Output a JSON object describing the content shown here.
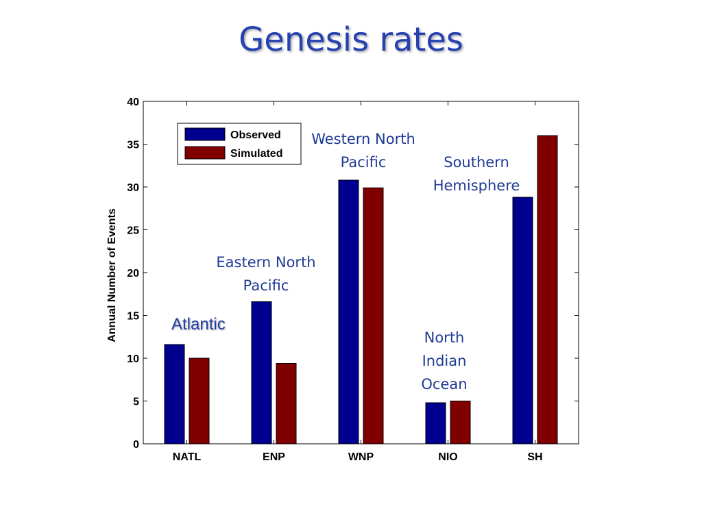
{
  "slide": {
    "title": "Genesis rates"
  },
  "colors": {
    "observed": "#00008f",
    "simulated": "#800000",
    "annotation": "#1f3a93"
  },
  "chart_data": {
    "type": "bar",
    "title": "",
    "xlabel": "",
    "ylabel": "Annual Number of Events",
    "categories": [
      "NATL",
      "ENP",
      "WNP",
      "NIO",
      "SH"
    ],
    "series": [
      {
        "name": "Observed",
        "values": [
          11.6,
          16.6,
          30.8,
          4.8,
          28.8
        ]
      },
      {
        "name": "Simulated",
        "values": [
          10.0,
          9.4,
          29.9,
          5.0,
          36.0
        ]
      }
    ],
    "ylim": [
      0,
      40
    ],
    "yticks": [
      0,
      5,
      10,
      15,
      20,
      25,
      30,
      35,
      40
    ],
    "legend_position": "top-left",
    "grid": false,
    "annotations": [
      {
        "id": "atlantic",
        "text": "Atlantic"
      },
      {
        "id": "enp",
        "text": "Eastern North\nPacific"
      },
      {
        "id": "wnp",
        "text": "Western North\nPacific"
      },
      {
        "id": "nio",
        "text": "North\nIndian\nOcean"
      },
      {
        "id": "sh",
        "text": "Southern\nHemisphere"
      }
    ]
  }
}
